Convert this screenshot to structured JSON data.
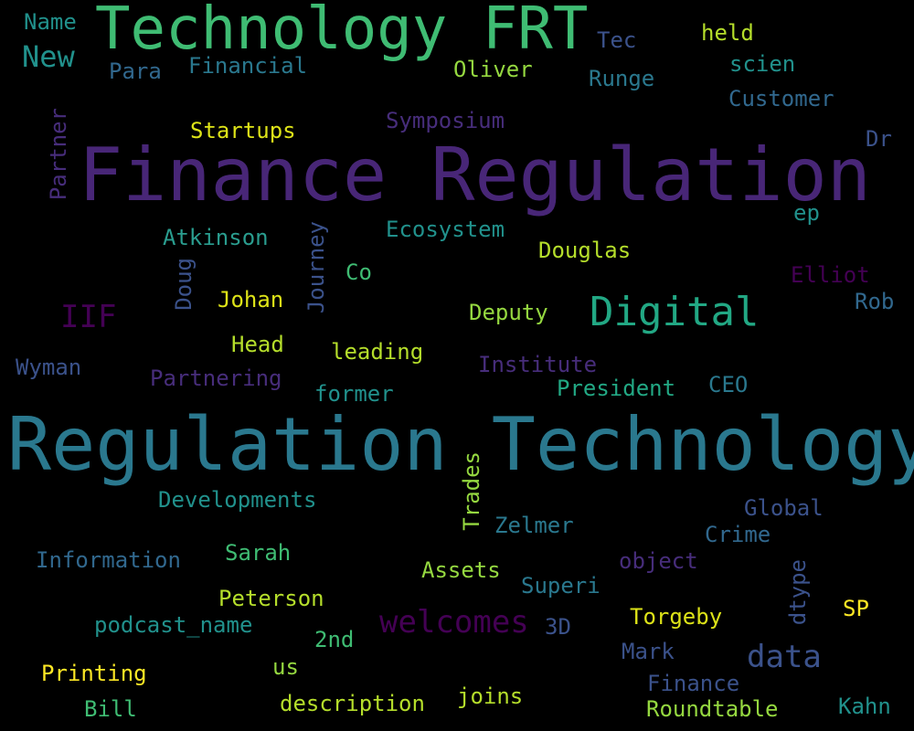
{
  "words": [
    {
      "text": "Finance Regulation",
      "color": "#482677",
      "weight": 1.0
    },
    {
      "text": "Regulation Technology",
      "color": "#2a788e",
      "weight": 0.98
    },
    {
      "text": "Technology FRT",
      "color": "#3fbc73",
      "weight": 0.88
    },
    {
      "text": "Digital",
      "color": "#22a884",
      "weight": 0.35
    },
    {
      "text": "IIF",
      "color": "#440154",
      "weight": 0.3
    },
    {
      "text": "welcomes",
      "color": "#440154",
      "weight": 0.3
    },
    {
      "text": "data",
      "color": "#3b528b",
      "weight": 0.3
    },
    {
      "text": "New",
      "color": "#21918c",
      "weight": 0.28
    },
    {
      "text": "Name",
      "color": "#21918c",
      "weight": 0.2
    },
    {
      "text": "Para",
      "color": "#31688e",
      "weight": 0.2
    },
    {
      "text": "Financial",
      "color": "#2a788e",
      "weight": 0.2
    },
    {
      "text": "Oliver",
      "color": "#95d840",
      "weight": 0.2
    },
    {
      "text": "Tec",
      "color": "#3b528b",
      "weight": 0.2
    },
    {
      "text": "held",
      "color": "#b5de2b",
      "weight": 0.2
    },
    {
      "text": "scien",
      "color": "#21918c",
      "weight": 0.2
    },
    {
      "text": "Runge",
      "color": "#2a788e",
      "weight": 0.2
    },
    {
      "text": "Customer",
      "color": "#31688e",
      "weight": 0.2
    },
    {
      "text": "Startups",
      "color": "#dde318",
      "weight": 0.2
    },
    {
      "text": "Symposium",
      "color": "#472d7b",
      "weight": 0.2
    },
    {
      "text": "Partner",
      "color": "#472d7b",
      "weight": 0.2
    },
    {
      "text": "Dr",
      "color": "#3b528b",
      "weight": 0.2
    },
    {
      "text": "ep",
      "color": "#21918c",
      "weight": 0.2
    },
    {
      "text": "Atkinson",
      "color": "#2a9d8f",
      "weight": 0.2
    },
    {
      "text": "Journey",
      "color": "#3b528b",
      "weight": 0.2
    },
    {
      "text": "Ecosystem",
      "color": "#21918c",
      "weight": 0.2
    },
    {
      "text": "Douglas",
      "color": "#b5de2b",
      "weight": 0.2
    },
    {
      "text": "Doug",
      "color": "#3b528b",
      "weight": 0.2
    },
    {
      "text": "Co",
      "color": "#3fbc73",
      "weight": 0.2
    },
    {
      "text": "Elliot",
      "color": "#440154",
      "weight": 0.2
    },
    {
      "text": "Johan",
      "color": "#dde318",
      "weight": 0.2
    },
    {
      "text": "Rob",
      "color": "#31688e",
      "weight": 0.2
    },
    {
      "text": "Deputy",
      "color": "#95d840",
      "weight": 0.2
    },
    {
      "text": "Head",
      "color": "#b5de2b",
      "weight": 0.2
    },
    {
      "text": "leading",
      "color": "#b5de2b",
      "weight": 0.2
    },
    {
      "text": "Wyman",
      "color": "#3b528b",
      "weight": 0.2
    },
    {
      "text": "Partnering",
      "color": "#472d7b",
      "weight": 0.2
    },
    {
      "text": "Institute",
      "color": "#472d7b",
      "weight": 0.2
    },
    {
      "text": "CEO",
      "color": "#2a788e",
      "weight": 0.2
    },
    {
      "text": "former",
      "color": "#21918c",
      "weight": 0.2
    },
    {
      "text": "President",
      "color": "#22a884",
      "weight": 0.2
    },
    {
      "text": "Trades",
      "color": "#95d840",
      "weight": 0.2
    },
    {
      "text": "Developments",
      "color": "#21918c",
      "weight": 0.2
    },
    {
      "text": "Global",
      "color": "#3b528b",
      "weight": 0.2
    },
    {
      "text": "Zelmer",
      "color": "#2a788e",
      "weight": 0.2
    },
    {
      "text": "Crime",
      "color": "#31688e",
      "weight": 0.2
    },
    {
      "text": "Information",
      "color": "#31688e",
      "weight": 0.2
    },
    {
      "text": "Sarah",
      "color": "#3fbc73",
      "weight": 0.2
    },
    {
      "text": "object",
      "color": "#472d7b",
      "weight": 0.2
    },
    {
      "text": "Assets",
      "color": "#95d840",
      "weight": 0.2
    },
    {
      "text": "Superi",
      "color": "#2a788e",
      "weight": 0.2
    },
    {
      "text": "dtype",
      "color": "#3b528b",
      "weight": 0.2
    },
    {
      "text": "SP",
      "color": "#fde725",
      "weight": 0.2
    },
    {
      "text": "Peterson",
      "color": "#b5de2b",
      "weight": 0.2
    },
    {
      "text": "podcast_name",
      "color": "#21918c",
      "weight": 0.2
    },
    {
      "text": "Torgeby",
      "color": "#dde318",
      "weight": 0.2
    },
    {
      "text": "3D",
      "color": "#3b528b",
      "weight": 0.2
    },
    {
      "text": "2nd",
      "color": "#3fbc73",
      "weight": 0.2
    },
    {
      "text": "Mark",
      "color": "#3b528b",
      "weight": 0.2
    },
    {
      "text": "Printing",
      "color": "#fde725",
      "weight": 0.2
    },
    {
      "text": "us",
      "color": "#95d840",
      "weight": 0.2
    },
    {
      "text": "Finance",
      "color": "#3b528b",
      "weight": 0.2
    },
    {
      "text": "joins",
      "color": "#b5de2b",
      "weight": 0.2
    },
    {
      "text": "Bill",
      "color": "#3fbc73",
      "weight": 0.2
    },
    {
      "text": "description",
      "color": "#b5de2b",
      "weight": 0.2
    },
    {
      "text": "Roundtable",
      "color": "#95d840",
      "weight": 0.2
    },
    {
      "text": "Kahn",
      "color": "#21918c",
      "weight": 0.2
    }
  ]
}
